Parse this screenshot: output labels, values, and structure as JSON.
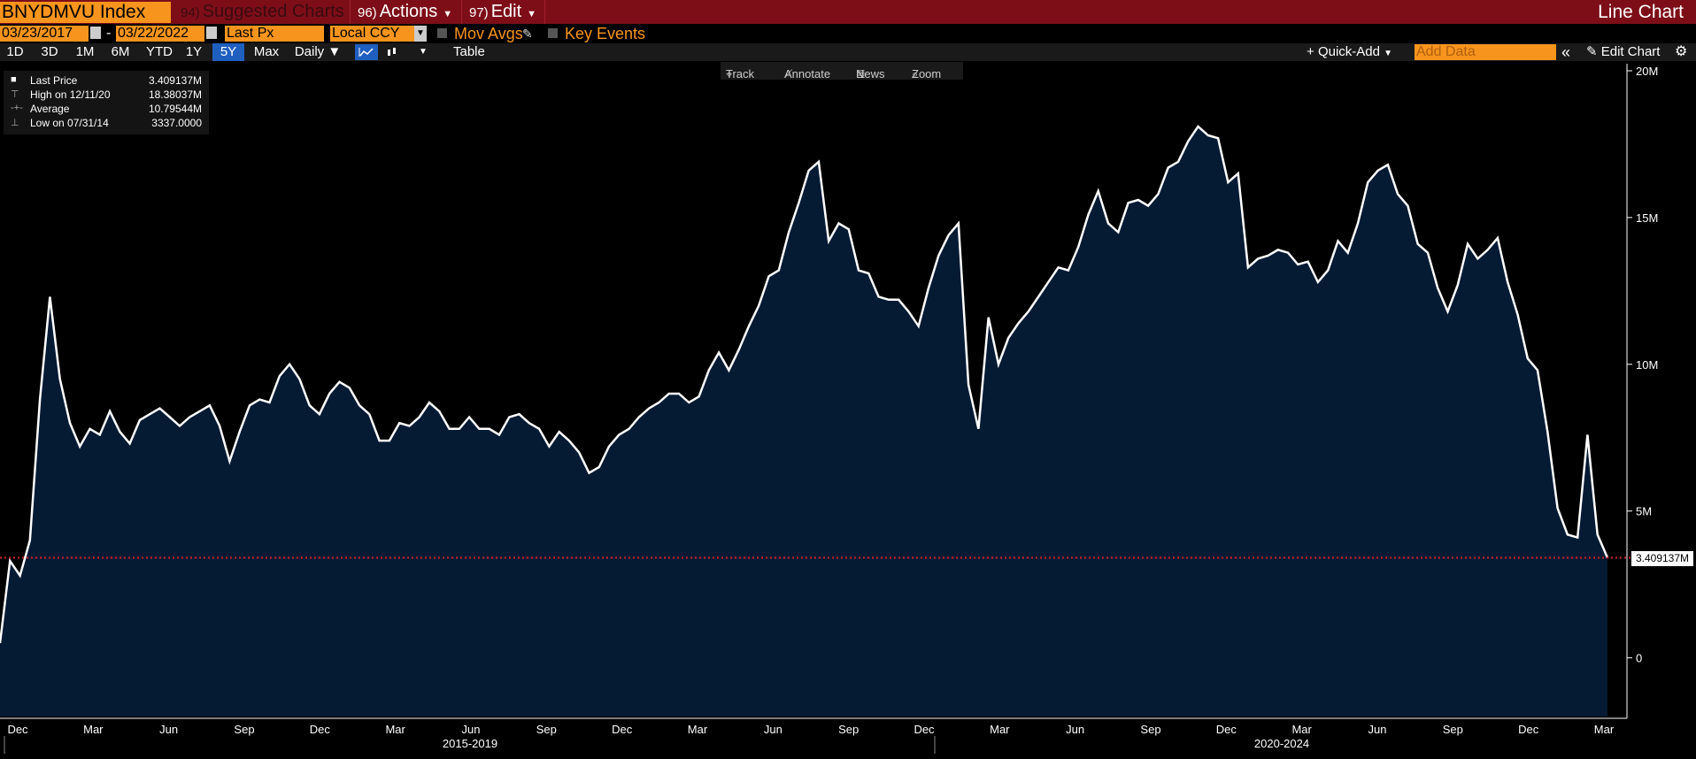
{
  "toolbar": {
    "ticker": "BNYDMVU Index",
    "suggested": {
      "num": "94)",
      "label": "Suggested Charts"
    },
    "actions": {
      "num": "96)",
      "label": "Actions"
    },
    "edit": {
      "num": "97)",
      "label": "Edit"
    },
    "view_title": "Line Chart"
  },
  "settings": {
    "start_date": "03/23/2017",
    "end_date": "03/22/2022",
    "separator": "-",
    "field": "Last Px",
    "currency": "Local CCY",
    "mov_avgs": "Mov Avgs",
    "key_events": "Key Events"
  },
  "ranges": [
    "1D",
    "3D",
    "1M",
    "6M",
    "YTD",
    "1Y",
    "5Y",
    "Max"
  ],
  "active_range": "5Y",
  "frequency": "Daily",
  "table_label": "Table",
  "quick_add": "Quick-Add",
  "add_data_placeholder": "Add Data",
  "edit_chart": "Edit Chart",
  "chart_tools": {
    "track": "Track",
    "annotate": "Annotate",
    "news": "News",
    "zoom": "Zoom"
  },
  "legend": {
    "last_label": "Last Price",
    "last_value": "3.409137M",
    "high_label": "High on 12/11/20",
    "high_value": "18.38037M",
    "avg_label": "Average",
    "avg_value": "10.79544M",
    "low_label": "Low on 07/31/14",
    "low_value": "3337.0000"
  },
  "last_value_tag": "3.409137M",
  "colors": {
    "line": "#ffffff",
    "fill": "#051a33",
    "accent": "#f7941d",
    "header": "#7d0e18",
    "last_line": "#d4202c"
  },
  "chart_data": {
    "type": "area",
    "ylabel": "",
    "xlabel": "",
    "ylim": [
      -2000000,
      20000000
    ],
    "yticks": [
      0,
      5000000,
      10000000,
      15000000,
      20000000
    ],
    "ytick_labels": [
      "0",
      "5M",
      "10M",
      "15M",
      "20M"
    ],
    "month_labels": [
      "Dec",
      "Mar",
      "Jun",
      "Sep",
      "Dec",
      "Mar",
      "Jun",
      "Sep",
      "Dec",
      "Mar",
      "Jun",
      "Sep",
      "Dec",
      "Mar",
      "Jun",
      "Sep",
      "Dec",
      "Mar",
      "Jun",
      "Sep",
      "Dec",
      "Mar"
    ],
    "period_labels": [
      "2015-2019",
      "2020-2024"
    ],
    "last_value": 3409137,
    "series": [
      {
        "values": [
          500000,
          3300000,
          2800000,
          4000000,
          8800000,
          12300000,
          9500000,
          8000000,
          7200000,
          7800000,
          7600000,
          8400000,
          7700000,
          7300000,
          8100000,
          8300000,
          8500000,
          8200000,
          7900000,
          8200000,
          8400000,
          8600000,
          7900000,
          6700000,
          7700000,
          8600000,
          8800000,
          8700000,
          9600000,
          10000000,
          9500000,
          8600000,
          8300000,
          9000000,
          9400000,
          9200000,
          8600000,
          8300000,
          7400000,
          7400000,
          8000000,
          7900000,
          8200000,
          8700000,
          8400000,
          7800000,
          7800000,
          8200000,
          7800000,
          7800000,
          7600000,
          8200000,
          8300000,
          8000000,
          7800000,
          7200000,
          7700000,
          7400000,
          7000000,
          6300000,
          6500000,
          7200000,
          7600000,
          7800000,
          8200000,
          8500000,
          8700000,
          9000000,
          9000000,
          8700000,
          8900000,
          9800000,
          10400000,
          9800000,
          10500000,
          11300000,
          12000000,
          13000000,
          13200000,
          14500000,
          15500000,
          16600000,
          16900000,
          14200000,
          14800000,
          14600000,
          13200000,
          13100000,
          12300000,
          12200000,
          12200000,
          11800000,
          11300000,
          12600000,
          13700000,
          14400000,
          14800000,
          9300000,
          7800000,
          11600000,
          10000000,
          10900000,
          11400000,
          11800000,
          12300000,
          12800000,
          13300000,
          13200000,
          14000000,
          15100000,
          15900000,
          14800000,
          14500000,
          15500000,
          15600000,
          15400000,
          15800000,
          16700000,
          16900000,
          17600000,
          18100000,
          17800000,
          17700000,
          16200000,
          16500000,
          13300000,
          13600000,
          13700000,
          13900000,
          13800000,
          13400000,
          13500000,
          12800000,
          13200000,
          14200000,
          13800000,
          14800000,
          16200000,
          16600000,
          16800000,
          15800000,
          15400000,
          14100000,
          13800000,
          12600000,
          11800000,
          12700000,
          14100000,
          13600000,
          13900000,
          14300000,
          12800000,
          11700000,
          10200000,
          9800000,
          7700000,
          5100000,
          4200000,
          4100000,
          7600000,
          4200000,
          3409137
        ]
      }
    ]
  }
}
